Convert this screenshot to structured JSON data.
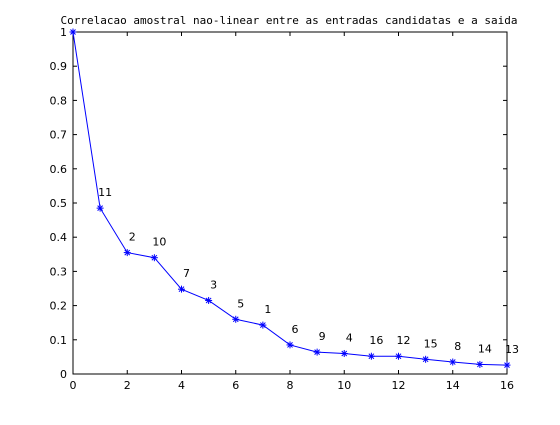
{
  "chart_data": {
    "type": "line",
    "title": "Correlacao amostral nao-linear entre as entradas candidatas e a saida",
    "xlabel": "",
    "ylabel": "",
    "xlim": [
      0,
      16
    ],
    "ylim": [
      0,
      1
    ],
    "xticks": [
      0,
      2,
      4,
      6,
      8,
      10,
      12,
      14,
      16
    ],
    "yticks": [
      0,
      0.1,
      0.2,
      0.3,
      0.4,
      0.5,
      0.6,
      0.7,
      0.8,
      0.9,
      1
    ],
    "grid": false,
    "legend": "none",
    "line_color": "#0000ff",
    "marker": "asterisk",
    "series": [
      {
        "x": [
          0,
          1,
          2,
          3,
          4,
          5,
          6,
          7,
          8,
          9,
          10,
          11,
          12,
          13,
          14,
          15,
          16
        ],
        "values": [
          1.0,
          0.485,
          0.355,
          0.34,
          0.248,
          0.215,
          0.16,
          0.143,
          0.085,
          0.064,
          0.06,
          0.052,
          0.052,
          0.043,
          0.035,
          0.028,
          0.026
        ],
        "point_labels": [
          "",
          "11",
          "2",
          "10",
          "7",
          "3",
          "5",
          "1",
          "6",
          "9",
          "4",
          "16",
          "12",
          "15",
          "8",
          "14",
          "13"
        ]
      }
    ]
  }
}
